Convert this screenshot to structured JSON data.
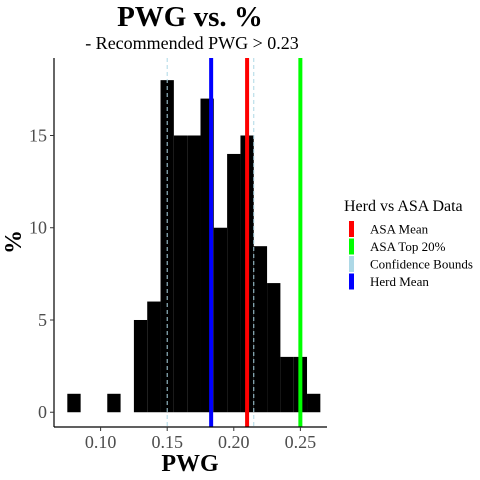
{
  "chart_data": {
    "type": "bar",
    "title": "PWG  vs.  %",
    "subtitle": "- Recommended  PWG > 0.23",
    "xlabel": "PWG",
    "ylabel": "%",
    "xlim": [
      0.065,
      0.27
    ],
    "ylim": [
      -0.8,
      19.2
    ],
    "x_ticks": [
      0.1,
      0.15,
      0.2,
      0.25
    ],
    "x_tick_labels": [
      "0.10",
      "0.15",
      "0.20",
      "0.25"
    ],
    "y_ticks": [
      0,
      5,
      10,
      15
    ],
    "y_tick_labels": [
      "0",
      "5",
      "10",
      "15"
    ],
    "bin_width": 0.01,
    "bins": [
      {
        "start": 0.075,
        "value": 1
      },
      {
        "start": 0.105,
        "value": 1
      },
      {
        "start": 0.125,
        "value": 5
      },
      {
        "start": 0.135,
        "value": 6
      },
      {
        "start": 0.145,
        "value": 18
      },
      {
        "start": 0.155,
        "value": 15
      },
      {
        "start": 0.165,
        "value": 15
      },
      {
        "start": 0.175,
        "value": 17
      },
      {
        "start": 0.185,
        "value": 10
      },
      {
        "start": 0.195,
        "value": 14
      },
      {
        "start": 0.205,
        "value": 15
      },
      {
        "start": 0.215,
        "value": 9
      },
      {
        "start": 0.225,
        "value": 7
      },
      {
        "start": 0.235,
        "value": 3
      },
      {
        "start": 0.245,
        "value": 3
      },
      {
        "start": 0.255,
        "value": 1
      }
    ],
    "bar_color": "#000000",
    "vlines": [
      {
        "name": "ASA Mean",
        "x": 0.21,
        "color": "#ff0000",
        "style": "solid"
      },
      {
        "name": "ASA Top 20%",
        "x": 0.25,
        "color": "#00ff00",
        "style": "solid"
      },
      {
        "name": "Confidence Bounds",
        "x": 0.15,
        "color": "#add8e6",
        "style": "dashed"
      },
      {
        "name": "Confidence Bounds",
        "x": 0.215,
        "color": "#add8e6",
        "style": "dashed"
      },
      {
        "name": "Herd Mean",
        "x": 0.183,
        "color": "#0000ff",
        "style": "solid"
      }
    ],
    "legend": {
      "title": "Herd vs ASA Data",
      "placement": "right",
      "entries": [
        {
          "label": "ASA Mean",
          "color": "#ff0000"
        },
        {
          "label": "ASA Top 20%",
          "color": "#00ff00"
        },
        {
          "label": "Confidence Bounds",
          "color": "#add8e6"
        },
        {
          "label": "Herd Mean",
          "color": "#0000ff"
        }
      ]
    },
    "grid": false
  }
}
